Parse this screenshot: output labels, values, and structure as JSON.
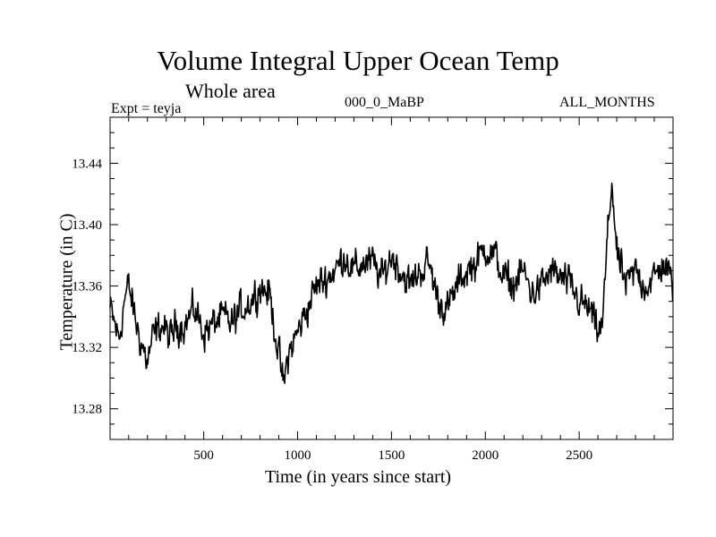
{
  "chart_data": {
    "type": "line",
    "title": "Volume Integral Upper Ocean Temp",
    "subtitle": "Whole area",
    "experiment_label": "Expt = teyja",
    "run_label": "000_0_MaBP",
    "months_label": "ALL_MONTHS",
    "xlabel": "Time (in years since start)",
    "ylabel": "Temperature (in C)",
    "xlim": [
      1,
      3000
    ],
    "ylim": [
      13.26,
      13.47
    ],
    "xticks": [
      500,
      1000,
      1500,
      2000,
      2500
    ],
    "xtick_labels": [
      "500",
      "1000",
      "1500",
      "2000",
      "2500"
    ],
    "yticks": [
      13.28,
      13.32,
      13.36,
      13.4,
      13.44
    ],
    "ytick_labels": [
      "13.28",
      "13.32",
      "13.36",
      "13.40",
      "13.44"
    ],
    "grid": false,
    "color": "#000000",
    "series": [
      {
        "name": "teyja",
        "x": [
          1,
          50,
          75,
          100,
          125,
          150,
          175,
          200,
          225,
          250,
          275,
          300,
          325,
          350,
          400,
          450,
          500,
          550,
          600,
          650,
          700,
          750,
          800,
          850,
          900,
          925,
          950,
          1000,
          1050,
          1100,
          1150,
          1200,
          1250,
          1300,
          1350,
          1400,
          1450,
          1500,
          1550,
          1600,
          1650,
          1700,
          1750,
          1800,
          1850,
          1900,
          1950,
          2000,
          2050,
          2100,
          2150,
          2200,
          2250,
          2300,
          2350,
          2400,
          2450,
          2500,
          2550,
          2600,
          2625,
          2650,
          2675,
          2700,
          2750,
          2800,
          2850,
          2900,
          2950,
          3000
        ],
        "values": [
          13.345,
          13.325,
          13.35,
          13.36,
          13.345,
          13.33,
          13.32,
          13.31,
          13.325,
          13.33,
          13.335,
          13.33,
          13.325,
          13.335,
          13.335,
          13.345,
          13.33,
          13.335,
          13.34,
          13.335,
          13.345,
          13.35,
          13.36,
          13.355,
          13.315,
          13.295,
          13.315,
          13.33,
          13.345,
          13.36,
          13.365,
          13.37,
          13.38,
          13.37,
          13.375,
          13.375,
          13.365,
          13.38,
          13.37,
          13.36,
          13.37,
          13.375,
          13.35,
          13.345,
          13.36,
          13.37,
          13.375,
          13.385,
          13.38,
          13.365,
          13.36,
          13.37,
          13.355,
          13.36,
          13.37,
          13.365,
          13.36,
          13.35,
          13.345,
          13.33,
          13.335,
          13.39,
          13.43,
          13.38,
          13.36,
          13.37,
          13.36,
          13.365,
          13.375,
          13.36
        ]
      }
    ]
  }
}
